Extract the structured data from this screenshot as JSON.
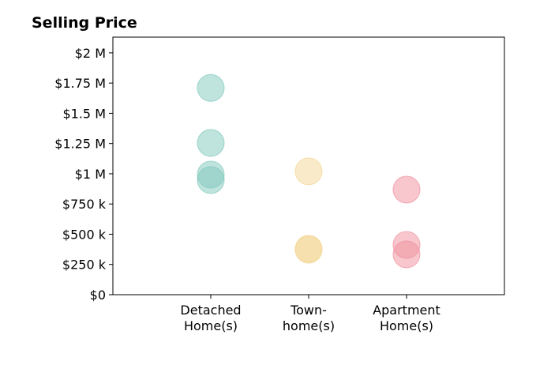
{
  "chart_data": {
    "type": "scatter",
    "title": "Selling Price",
    "xlim": [
      0,
      4
    ],
    "xticks": [
      {
        "value": 1,
        "label": "Detached\nHome(s)"
      },
      {
        "value": 2,
        "label": "Town-\nhome(s)"
      },
      {
        "value": 3,
        "label": "Apartment\nHome(s)"
      }
    ],
    "ylim": [
      0,
      2130000
    ],
    "yticks": [
      {
        "value": 0,
        "label": "$0"
      },
      {
        "value": 250000,
        "label": "$250 k"
      },
      {
        "value": 500000,
        "label": "$500 k"
      },
      {
        "value": 750000,
        "label": "$750 k"
      },
      {
        "value": 1000000,
        "label": "$1 M"
      },
      {
        "value": 1250000,
        "label": "$1.25 M"
      },
      {
        "value": 1500000,
        "label": "$1.5 M"
      },
      {
        "value": 1750000,
        "label": "$1.75 M"
      },
      {
        "value": 2000000,
        "label": "$2 M"
      }
    ],
    "series": [
      {
        "color": "#7fc8bb",
        "x": [
          1,
          1,
          1,
          1
        ],
        "values": [
          1710000,
          1255000,
          993000,
          948000
        ]
      },
      {
        "color": "#f3d594",
        "x": [
          2,
          2,
          2
        ],
        "values": [
          1020000,
          380000,
          372000
        ]
      },
      {
        "color": "#ef8f9c",
        "x": [
          3,
          3,
          3
        ],
        "values": [
          869000,
          412000,
          333000
        ]
      }
    ]
  }
}
